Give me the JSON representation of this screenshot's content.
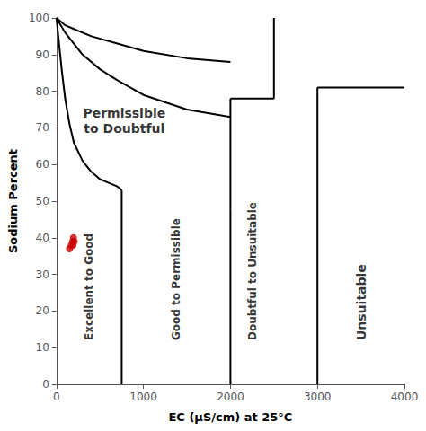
{
  "chart_data": {
    "type": "line",
    "xlabel": "EC (μS/cm) at 25°C",
    "ylabel": "Sodium Percent",
    "xlim": [
      0,
      4000
    ],
    "ylim": [
      0,
      100
    ],
    "xticks": [
      0,
      1000,
      2000,
      3000,
      4000
    ],
    "yticks": [
      0,
      10,
      20,
      30,
      40,
      50,
      60,
      70,
      80,
      90,
      100
    ],
    "grid": false,
    "series": [
      {
        "type": "line",
        "color": "#000000",
        "x": [
          0,
          30,
          60,
          100,
          150,
          200,
          300,
          400,
          500,
          600,
          700,
          750
        ],
        "values": [
          100,
          93,
          86,
          78,
          71,
          66,
          61,
          58,
          56,
          55,
          54,
          53
        ]
      },
      {
        "type": "line",
        "color": "#000000",
        "x": [
          0,
          50,
          100,
          200,
          300,
          500,
          700,
          1000,
          1500,
          2000
        ],
        "values": [
          100,
          98,
          96,
          93,
          90,
          86,
          83,
          79,
          75,
          73
        ]
      },
      {
        "type": "line",
        "color": "#000000",
        "x": [
          0,
          50,
          100,
          200,
          400,
          700,
          1000,
          1500,
          2000
        ],
        "values": [
          100,
          99,
          98,
          97,
          95,
          93,
          91,
          89,
          88
        ]
      },
      {
        "type": "line",
        "color": "#000000",
        "x": [
          750,
          750
        ],
        "values": [
          0,
          53
        ]
      },
      {
        "type": "line",
        "color": "#000000",
        "x": [
          2000,
          2000
        ],
        "values": [
          0,
          48
        ]
      },
      {
        "type": "line",
        "color": "#000000",
        "x": [
          2000,
          2000
        ],
        "values": [
          48,
          78
        ]
      },
      {
        "type": "line",
        "color": "#000000",
        "x": [
          2000,
          2500
        ],
        "values": [
          78,
          78
        ]
      },
      {
        "type": "line",
        "color": "#000000",
        "x": [
          2500,
          2500
        ],
        "values": [
          78,
          100
        ]
      },
      {
        "type": "line",
        "color": "#000000",
        "x": [
          3000,
          3000
        ],
        "values": [
          0,
          81
        ]
      },
      {
        "type": "line",
        "color": "#000000",
        "x": [
          3000,
          4000
        ],
        "values": [
          81,
          81
        ]
      },
      {
        "type": "scatter",
        "color": "#cc0000",
        "x": [
          150,
          170,
          185,
          195,
          205,
          190
        ],
        "values": [
          37,
          38,
          39,
          40,
          39,
          38
        ]
      }
    ],
    "annotations": [
      {
        "text": "Excellent to Good",
        "x": 375,
        "y": 12
      },
      {
        "text": "Good to Permissible",
        "x": 1375,
        "y": 12
      },
      {
        "text": "Permissible\nto Doubtful",
        "x": 780,
        "y": 72
      },
      {
        "text": "Doubtful to Unsuitable",
        "x": 2250,
        "y": 12
      },
      {
        "text": "Unsuitable",
        "x": 3500,
        "y": 12
      }
    ]
  }
}
